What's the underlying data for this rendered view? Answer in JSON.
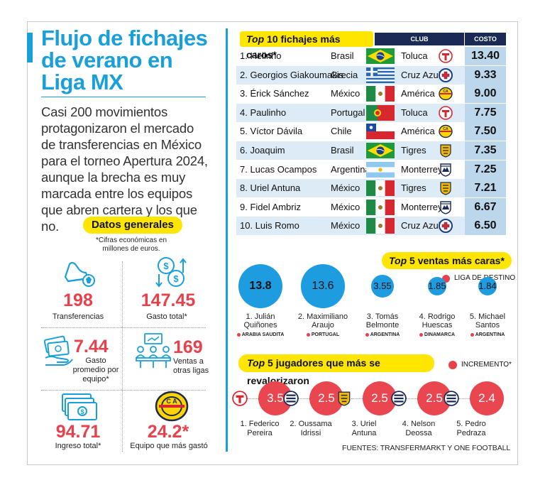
{
  "title": "Flujo de fichajes de verano  en Liga MX",
  "intro": "Casi 200 movimientos protagonizaron el mercado de transferencias en México para el torneo Apertura 2024, aunque la brecha es muy marcada entre los equipos que abren cartera y los que no.",
  "datos_generales": {
    "heading": "Datos generales",
    "note": "*Cifras económicas en millones de euros.",
    "stats": [
      {
        "value": "198",
        "label": "Transferencias",
        "icon": "soccer-cleat-ball-icon"
      },
      {
        "value": "147.45",
        "label": "Gasto total*",
        "icon": "money-transfer-icon"
      },
      {
        "value": "7.44",
        "label": "Gasto promedio por equipo*",
        "icon": "cash-hand-icon"
      },
      {
        "value": "169",
        "label": "Ventas a otras ligas",
        "icon": "meeting-group-icon"
      },
      {
        "value": "94.71",
        "label": "Ingreso total*",
        "icon": "banknotes-icon"
      },
      {
        "value": "24.2*",
        "label": "Equipo que más gastó",
        "icon": "club-america-crest-icon"
      }
    ]
  },
  "top10": {
    "heading_top": "Top",
    "heading_rest": " 10 fichajes más caros*",
    "col_club": "CLUB",
    "col_costo": "COSTO",
    "rows": [
      {
        "rank": "1. Helinho",
        "country": "Brasil",
        "flag": "brazil",
        "club": "Toluca",
        "crest": "toluca",
        "cost": "13.40"
      },
      {
        "rank": "2. Georgios Giakoumakis",
        "country": "Grecia",
        "flag": "greece",
        "club": "Cruz Azul",
        "crest": "cruzazul",
        "cost": "9.33"
      },
      {
        "rank": "3. Érick Sánchez",
        "country": "México",
        "flag": "mexico",
        "club": "América",
        "crest": "america",
        "cost": "9.00"
      },
      {
        "rank": "4. Paulinho",
        "country": "Portugal",
        "flag": "portugal",
        "club": "Toluca",
        "crest": "toluca",
        "cost": "7.75"
      },
      {
        "rank": "5. Víctor Dávila",
        "country": "Chile",
        "flag": "chile",
        "club": "América",
        "crest": "america",
        "cost": "7.50"
      },
      {
        "rank": "6. Joaquim",
        "country": "Brasil",
        "flag": "brazil",
        "club": "Tigres",
        "crest": "tigres",
        "cost": "7.35"
      },
      {
        "rank": "7. Lucas Ocampos",
        "country": "Argentina",
        "flag": "argentina",
        "club": "Monterrey",
        "crest": "monterrey",
        "cost": "7.25"
      },
      {
        "rank": "8. Uriel Antuna",
        "country": "México",
        "flag": "mexico",
        "club": "Tigres",
        "crest": "tigres",
        "cost": "7.21"
      },
      {
        "rank": "9. Fidel Ambriz",
        "country": "México",
        "flag": "mexico",
        "club": "Monterrey",
        "crest": "monterrey",
        "cost": "6.67"
      },
      {
        "rank": "10. Luis Romo",
        "country": "México",
        "flag": "mexico",
        "club": "Cruz Azul",
        "crest": "cruzazul",
        "cost": "6.50"
      }
    ]
  },
  "ventas": {
    "heading_top": "Top",
    "heading_rest": " 5 ventas más caras*",
    "legend": "LIGA DE DESTINO",
    "items": [
      {
        "value": "13.8",
        "name": "1. Julián Quiñones",
        "dest": "ARABIA SAUDITA"
      },
      {
        "value": "13.6",
        "name": "2. Maximiliano Araujo",
        "dest": "PORTUGAL"
      },
      {
        "value": "3.55",
        "name": "3. Tomás Belmonte",
        "dest": "ARGENTINA"
      },
      {
        "value": "1.85",
        "name": "4. Rodrigo Huescas",
        "dest": "DINAMARCA"
      },
      {
        "value": "1.84",
        "name": "5. Michael Santos",
        "dest": "ARGENTINA"
      }
    ]
  },
  "revalorizaron": {
    "heading_top": "Top",
    "heading_rest": " 5 jugadores que más se revalorizaron",
    "legend": "INCREMENTO*",
    "items": [
      {
        "value": "3.5",
        "name": "1. Federico Pereira",
        "crest": "toluca"
      },
      {
        "value": "2.5",
        "name": "2. Oussama Idrissi",
        "crest": "pachuca"
      },
      {
        "value": "2.5",
        "name": "3. Uriel Antuna",
        "crest": "tigres"
      },
      {
        "value": "2.5",
        "name": "4. Nelson Deossa",
        "crest": "pachuca"
      },
      {
        "value": "2.4",
        "name": "5. Pedro Pedraza",
        "crest": "pachuca"
      }
    ]
  },
  "fuentes": "FUENTES: TRANSFERMARKT Y ONE FOOTBALL",
  "colors": {
    "accent": "#1aa0d8",
    "highlight": "#ffe600",
    "red": "#e8414b",
    "navy": "#1a2a55",
    "bubble_blue": "#1e9ce0"
  }
}
